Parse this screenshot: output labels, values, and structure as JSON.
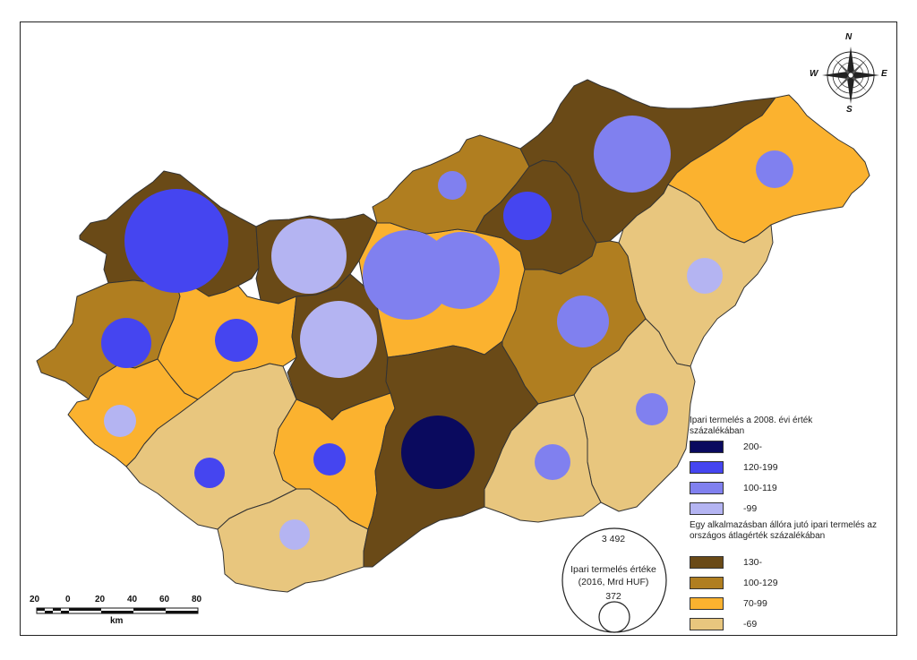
{
  "legend": {
    "growth_title": "Ipari termelés a 2008. évi érték százalékában",
    "growth_classes": [
      {
        "label": "200-",
        "color": "#0a0a5e"
      },
      {
        "label": "120-199",
        "color": "#4545f0"
      },
      {
        "label": "100-119",
        "color": "#8080ef"
      },
      {
        "label": "-99",
        "color": "#b4b4f2"
      }
    ],
    "productivity_title": "Egy alkalmazásban állóra jutó ipari termelés az országos átlagérték százalékában",
    "productivity_classes": [
      {
        "label": "130-",
        "color": "#6a4a17"
      },
      {
        "label": "100-129",
        "color": "#b07e20"
      },
      {
        "label": "70-99",
        "color": "#fbb22f"
      },
      {
        "label": "-69",
        "color": "#e8c67e"
      }
    ]
  },
  "size_legend": {
    "max_value": "3 492",
    "min_value": "372",
    "title_line1": "Ipari termelés értéke",
    "title_line2": "(2016, Mrd HUF)"
  },
  "scale_bar": {
    "ticks": [
      "20",
      "0",
      "20",
      "40",
      "60",
      "80"
    ],
    "unit": "km"
  },
  "compass": {
    "n": "N",
    "s": "S",
    "e": "E",
    "w": "W"
  },
  "colors": {
    "border": "#333333",
    "frame": "#222222"
  }
}
